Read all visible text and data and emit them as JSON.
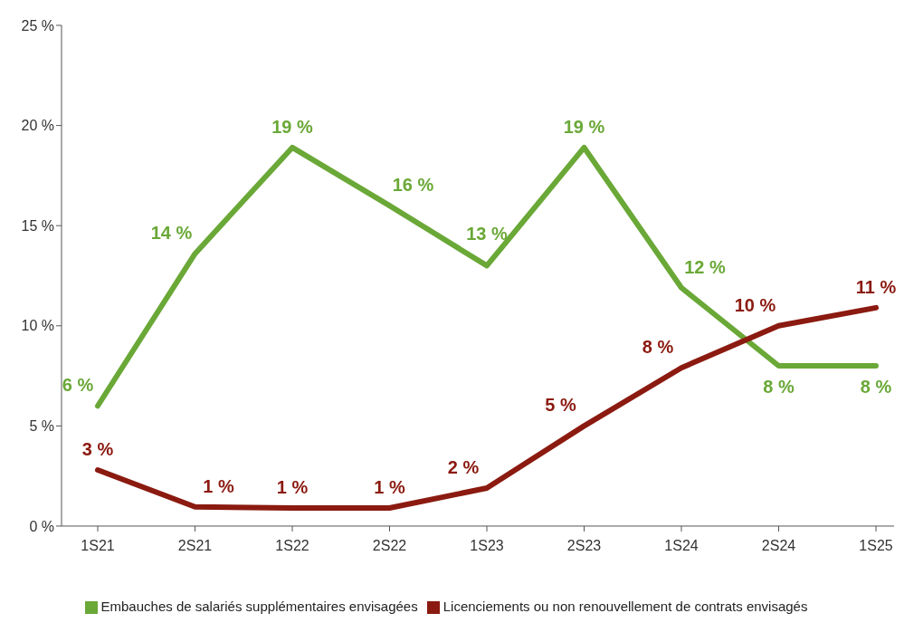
{
  "chart_data": {
    "type": "line",
    "categories": [
      "1S21",
      "2S21",
      "1S22",
      "2S22",
      "1S23",
      "2S23",
      "1S24",
      "2S24",
      "1S25"
    ],
    "series": [
      {
        "name": "Embauches de salariés supplémentaires envisagées",
        "color": "#6aa837",
        "values": [
          6,
          13.6,
          18.9,
          16,
          13,
          18.9,
          11.9,
          8,
          8
        ],
        "value_labels": [
          "6 %",
          "14 %",
          "19 %",
          "16 %",
          "13 %",
          "19 %",
          "12 %",
          "8 %",
          "8 %"
        ]
      },
      {
        "name": "Licenciements ou non renouvellement de contrats envisagés",
        "color": "#8b1a10",
        "values": [
          2.8,
          0.96,
          0.9,
          0.9,
          1.9,
          5,
          7.9,
          10,
          10.9
        ],
        "value_labels": [
          "3 %",
          "1 %",
          "1 %",
          "1 %",
          "2 %",
          "5 %",
          "8 %",
          "10 %",
          "11 %"
        ]
      }
    ],
    "ylim": [
      0,
      25
    ],
    "yticks": [
      {
        "value": 0,
        "label": "0 %"
      },
      {
        "value": 5,
        "label": "5 %"
      },
      {
        "value": 10,
        "label": "10 %"
      },
      {
        "value": 15,
        "label": "15 %"
      },
      {
        "value": 20,
        "label": "20 %"
      },
      {
        "value": 25,
        "label": "25 %"
      }
    ],
    "legend": "bottom",
    "marker": "none",
    "line_style": "solid"
  }
}
